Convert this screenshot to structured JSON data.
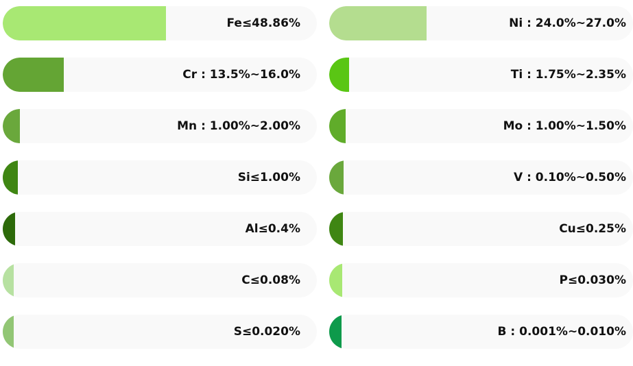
{
  "left_column": [
    {
      "label": "Fe≤48.86%",
      "fill_percent": 52,
      "color": "#a8e873"
    },
    {
      "label": "Cr : 13.5%~16.0%",
      "fill_percent": 19.5,
      "color": "#64a534"
    },
    {
      "label": "Mn : 1.00%~2.00%",
      "fill_percent": 5.5,
      "color": "#6aa83c"
    },
    {
      "label": "Si≤1.00%",
      "fill_percent": 4.8,
      "color": "#3f8613"
    },
    {
      "label": "Al≤0.4%",
      "fill_percent": 4,
      "color": "#2d6a0a"
    },
    {
      "label": "C≤0.08%",
      "fill_percent": 3.5,
      "color": "#b7e1a1"
    },
    {
      "label": "S≤0.020%",
      "fill_percent": 3.5,
      "color": "#92c675"
    }
  ],
  "right_column": [
    {
      "label": "Ni : 24.0%~27.0%",
      "fill_percent": 32,
      "color": "#b4dd8f"
    },
    {
      "label": "Ti : 1.75%~2.35%",
      "fill_percent": 6.5,
      "color": "#5ac614"
    },
    {
      "label": "Mo : 1.00%~1.50%",
      "fill_percent": 5.5,
      "color": "#60ac2a"
    },
    {
      "label": "V : 0.10%~0.50%",
      "fill_percent": 4.8,
      "color": "#6aa83c"
    },
    {
      "label": "Cu≤0.25%",
      "fill_percent": 4.5,
      "color": "#3f8613"
    },
    {
      "label": "P≤0.030%",
      "fill_percent": 4.3,
      "color": "#a8e873"
    },
    {
      "label": "B : 0.001%~0.010%",
      "fill_percent": 4,
      "color": "#0e9a4b"
    }
  ]
}
